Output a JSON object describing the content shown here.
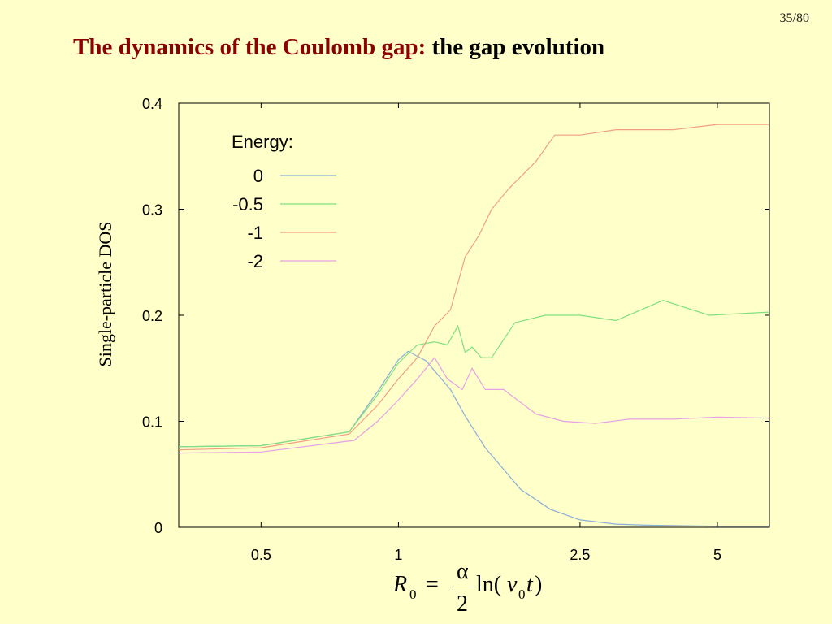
{
  "page_number": "35/80",
  "title": {
    "main": "The dynamics of the Coulomb gap:",
    "sub": "the gap evolution"
  },
  "formula": {
    "R": "R",
    "R_sub": "0",
    "eq": "=",
    "numerator": "α",
    "denominator": "2",
    "ln_open": "ln(",
    "v": "v",
    "v_sub": "0",
    "t": "t",
    "close": ")"
  },
  "colors": {
    "background": "#ffffc9",
    "title_main": "#8b0000",
    "series_0": "#8aaed8",
    "series_-0.5": "#7fe07f",
    "series_-1": "#f0a080",
    "series_-2": "#e7a0e7"
  },
  "chart_data": {
    "type": "line",
    "title": "",
    "xlabel": "",
    "ylabel": "Single-particle DOS",
    "xscale": "log",
    "xlim": [
      0.33,
      6.5
    ],
    "ylim": [
      0,
      0.4
    ],
    "grid": false,
    "legend_title": "Energy:",
    "legend_placement": "top-left",
    "x_ticks": [
      {
        "value": 0.5,
        "label": "0.5"
      },
      {
        "value": 1,
        "label": "1"
      },
      {
        "value": 2.5,
        "label": "2.5"
      },
      {
        "value": 5,
        "label": "5"
      }
    ],
    "y_ticks": [
      {
        "value": 0,
        "label": "0"
      },
      {
        "value": 0.1,
        "label": "0.1"
      },
      {
        "value": 0.2,
        "label": "0.2"
      },
      {
        "value": 0.3,
        "label": "0.3"
      },
      {
        "value": 0.4,
        "label": "0.4"
      }
    ],
    "series": [
      {
        "name": "0",
        "color": "#8aaed8",
        "points": [
          [
            0.33,
            0.076
          ],
          [
            0.5,
            0.077
          ],
          [
            0.78,
            0.09
          ],
          [
            0.9,
            0.128
          ],
          [
            1.0,
            0.158
          ],
          [
            1.05,
            0.166
          ],
          [
            1.15,
            0.157
          ],
          [
            1.3,
            0.13
          ],
          [
            1.4,
            0.105
          ],
          [
            1.55,
            0.075
          ],
          [
            1.85,
            0.036
          ],
          [
            2.15,
            0.017
          ],
          [
            2.5,
            0.007
          ],
          [
            3.0,
            0.003
          ],
          [
            3.5,
            0.002
          ],
          [
            5.0,
            0.001
          ],
          [
            6.5,
            0.001
          ]
        ]
      },
      {
        "name": "-0.5",
        "color": "#7fe07f",
        "points": [
          [
            0.33,
            0.076
          ],
          [
            0.5,
            0.077
          ],
          [
            0.78,
            0.09
          ],
          [
            0.9,
            0.125
          ],
          [
            1.0,
            0.155
          ],
          [
            1.1,
            0.172
          ],
          [
            1.2,
            0.175
          ],
          [
            1.28,
            0.172
          ],
          [
            1.35,
            0.19
          ],
          [
            1.4,
            0.165
          ],
          [
            1.45,
            0.17
          ],
          [
            1.52,
            0.16
          ],
          [
            1.6,
            0.16
          ],
          [
            1.8,
            0.193
          ],
          [
            2.1,
            0.2
          ],
          [
            2.5,
            0.2
          ],
          [
            3.0,
            0.195
          ],
          [
            3.8,
            0.214
          ],
          [
            4.8,
            0.2
          ],
          [
            6.5,
            0.203
          ]
        ]
      },
      {
        "name": "-1",
        "color": "#f0a080",
        "points": [
          [
            0.33,
            0.073
          ],
          [
            0.5,
            0.075
          ],
          [
            0.78,
            0.088
          ],
          [
            0.9,
            0.115
          ],
          [
            1.0,
            0.14
          ],
          [
            1.1,
            0.16
          ],
          [
            1.2,
            0.19
          ],
          [
            1.3,
            0.205
          ],
          [
            1.4,
            0.255
          ],
          [
            1.5,
            0.275
          ],
          [
            1.6,
            0.3
          ],
          [
            1.75,
            0.32
          ],
          [
            2.0,
            0.345
          ],
          [
            2.2,
            0.37
          ],
          [
            2.5,
            0.37
          ],
          [
            3.0,
            0.375
          ],
          [
            4.0,
            0.375
          ],
          [
            5.0,
            0.38
          ],
          [
            6.5,
            0.38
          ]
        ]
      },
      {
        "name": "-2",
        "color": "#e7a0e7",
        "points": [
          [
            0.33,
            0.07
          ],
          [
            0.5,
            0.071
          ],
          [
            0.8,
            0.082
          ],
          [
            0.9,
            0.1
          ],
          [
            1.0,
            0.12
          ],
          [
            1.1,
            0.14
          ],
          [
            1.2,
            0.16
          ],
          [
            1.28,
            0.14
          ],
          [
            1.38,
            0.13
          ],
          [
            1.45,
            0.15
          ],
          [
            1.55,
            0.13
          ],
          [
            1.7,
            0.13
          ],
          [
            2.0,
            0.107
          ],
          [
            2.3,
            0.1
          ],
          [
            2.7,
            0.098
          ],
          [
            3.2,
            0.102
          ],
          [
            4.0,
            0.102
          ],
          [
            5.0,
            0.104
          ],
          [
            6.5,
            0.103
          ]
        ]
      }
    ]
  }
}
